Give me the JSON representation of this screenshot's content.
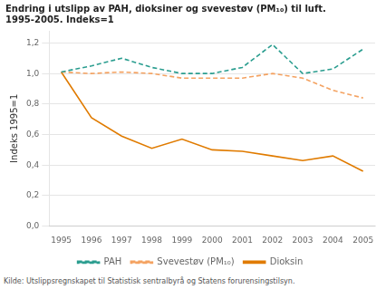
{
  "chart_data": {
    "type": "line",
    "title": [
      "Endring i utslipp av PAH, dioksiner og svevestøv (PM₁₀) til luft.",
      "1995-2005. Indeks=1"
    ],
    "y_label": "Indeks 1995=1",
    "annotations": [
      "Kilde: Utslippsregnskapet til Statistisk sentralbyrå og Statens forurensingstilsyn."
    ],
    "x": [
      1995,
      1996,
      1997,
      1998,
      1999,
      2000,
      2001,
      2002,
      2003,
      2004,
      2005
    ],
    "xlim": [
      1994.6,
      2005.4
    ],
    "xticks": [
      1995,
      1996,
      1997,
      1998,
      1999,
      2000,
      2001,
      2002,
      2003,
      2004,
      2005
    ],
    "ylim": [
      0.0,
      1.28
    ],
    "yticks": [
      {
        "value": 0.0,
        "label": "0,0"
      },
      {
        "value": 0.2,
        "label": "0,2"
      },
      {
        "value": 0.4,
        "label": "0,4"
      },
      {
        "value": 0.6,
        "label": "0,6"
      },
      {
        "value": 0.8,
        "label": "0,8"
      },
      {
        "value": 1.0,
        "label": "1,0"
      },
      {
        "value": 1.2,
        "label": "1,2"
      }
    ],
    "grid": "y",
    "legend": "bottom",
    "series": [
      {
        "name": "PAH",
        "color": "#2a9d8f",
        "line_style": "dashed",
        "values": [
          1.01,
          1.05,
          1.1,
          1.04,
          1.0,
          1.0,
          1.04,
          1.19,
          1.0,
          1.03,
          1.16
        ]
      },
      {
        "name": "Svevestøv (PM₁₀)",
        "color": "#f4a261",
        "line_style": "dashed",
        "values": [
          1.01,
          1.0,
          1.01,
          1.0,
          0.97,
          0.97,
          0.97,
          1.0,
          0.97,
          0.89,
          0.84
        ]
      },
      {
        "name": "Dioksin",
        "color": "#e07b00",
        "line_style": "solid",
        "values": [
          1.01,
          0.71,
          0.59,
          0.51,
          0.57,
          0.5,
          0.49,
          0.46,
          0.43,
          0.46,
          0.36
        ]
      }
    ]
  }
}
